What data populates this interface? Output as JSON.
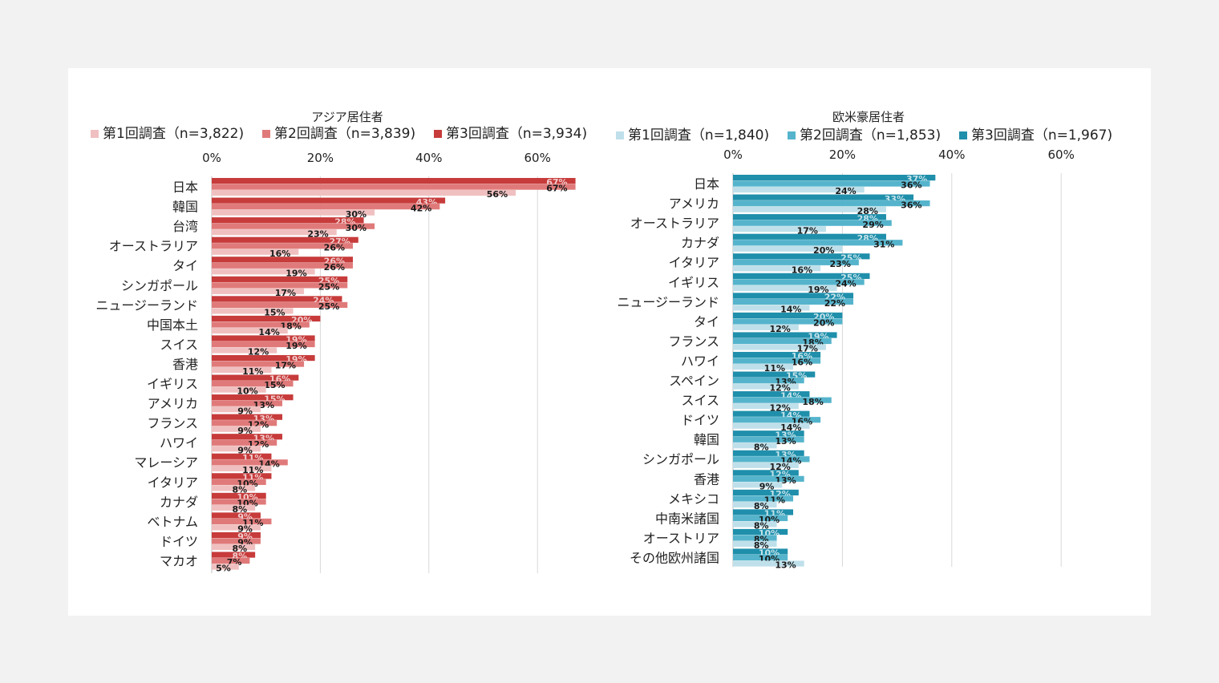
{
  "colors": {
    "asia": [
      "#f0c0c0",
      "#e07a7a",
      "#c73b3b"
    ],
    "west": [
      "#bfe0ea",
      "#55b4cc",
      "#1f8fab"
    ]
  },
  "chart_data": [
    {
      "type": "bar",
      "orientation": "horizontal",
      "title": "アジア居住者",
      "xlim": [
        0,
        70
      ],
      "xticks": [
        "0%",
        "20%",
        "40%",
        "60%"
      ],
      "grid": true,
      "legend_position": "top",
      "categories": [
        "日本",
        "韓国",
        "台湾",
        "オーストラリア",
        "タイ",
        "シンガポール",
        "ニュージーランド",
        "中国本土",
        "スイス",
        "香港",
        "イギリス",
        "アメリカ",
        "フランス",
        "ハワイ",
        "マレーシア",
        "イタリア",
        "カナダ",
        "ベトナム",
        "ドイツ",
        "マカオ"
      ],
      "series": [
        {
          "name": "第1回調査（n=3,822)",
          "values": [
            56,
            30,
            23,
            16,
            19,
            17,
            15,
            14,
            12,
            11,
            10,
            9,
            9,
            9,
            11,
            8,
            8,
            9,
            8,
            5
          ]
        },
        {
          "name": "第2回調査（n=3,839)",
          "values": [
            67,
            42,
            30,
            26,
            26,
            25,
            25,
            18,
            19,
            17,
            15,
            13,
            12,
            12,
            14,
            10,
            10,
            11,
            9,
            7
          ]
        },
        {
          "name": "第3回調査（n=3,934)",
          "values": [
            67,
            43,
            28,
            27,
            26,
            25,
            24,
            20,
            19,
            19,
            16,
            15,
            13,
            13,
            11,
            11,
            10,
            9,
            9,
            8
          ]
        }
      ]
    },
    {
      "type": "bar",
      "orientation": "horizontal",
      "title": "欧米豪居住者",
      "xlim": [
        0,
        70
      ],
      "xticks": [
        "0%",
        "20%",
        "40%",
        "60%"
      ],
      "grid": true,
      "legend_position": "top",
      "categories": [
        "日本",
        "アメリカ",
        "オーストラリア",
        "カナダ",
        "イタリア",
        "イギリス",
        "ニュージーランド",
        "タイ",
        "フランス",
        "ハワイ",
        "スペイン",
        "スイス",
        "ドイツ",
        "韓国",
        "シンガポール",
        "香港",
        "メキシコ",
        "中南米諸国",
        "オーストリア",
        "その他欧州諸国"
      ],
      "series": [
        {
          "name": "第1回調査（n=1,840)",
          "values": [
            24,
            28,
            17,
            20,
            16,
            19,
            14,
            12,
            17,
            11,
            12,
            12,
            14,
            8,
            12,
            9,
            8,
            8,
            8,
            13
          ]
        },
        {
          "name": "第2回調査（n=1,853)",
          "values": [
            36,
            36,
            29,
            31,
            23,
            24,
            22,
            20,
            18,
            16,
            13,
            18,
            16,
            13,
            14,
            13,
            11,
            10,
            8,
            10
          ]
        },
        {
          "name": "第3回調査（n=1,967)",
          "values": [
            37,
            33,
            28,
            28,
            25,
            25,
            22,
            20,
            19,
            16,
            15,
            14,
            14,
            13,
            13,
            12,
            12,
            11,
            10,
            10
          ]
        }
      ]
    }
  ]
}
